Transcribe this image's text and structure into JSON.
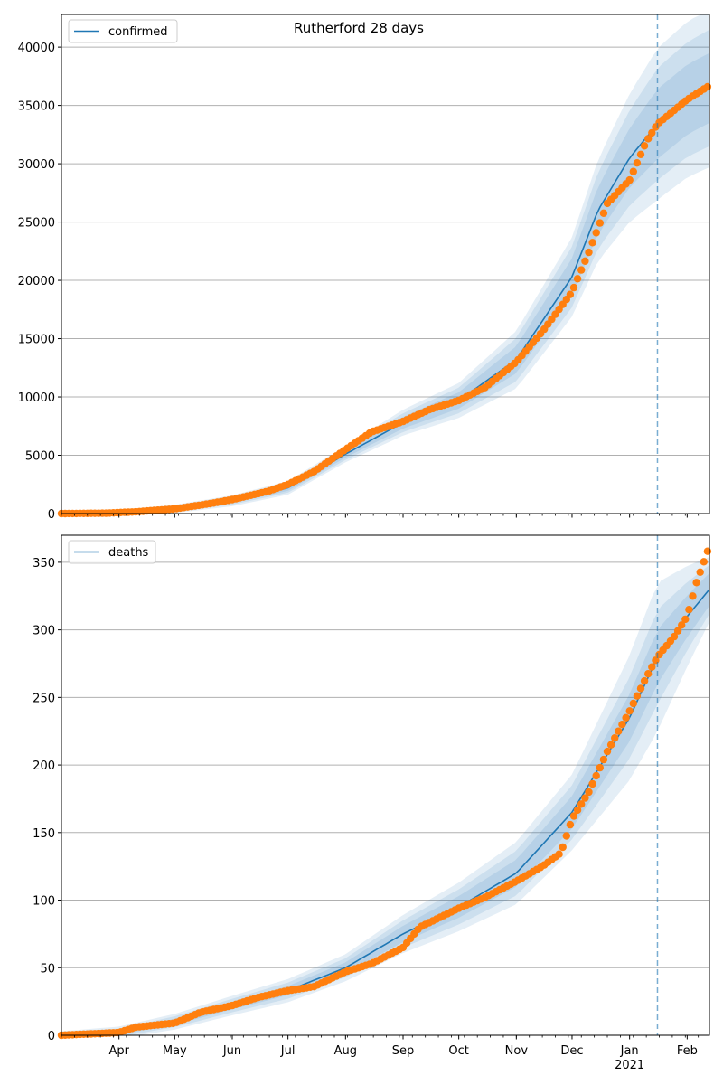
{
  "figure": {
    "title": "Rutherford 28 days"
  },
  "colors": {
    "model_line": "#1f77b4",
    "observed": "#ff7f0e",
    "band": "#1f77b4",
    "grid": "#b0b0b0",
    "forecast_line": "#1f77b4"
  },
  "x_axis": {
    "month_ticks": [
      {
        "label": "Apr",
        "date": "2020-04-01"
      },
      {
        "label": "May",
        "date": "2020-05-01"
      },
      {
        "label": "Jun",
        "date": "2020-06-01"
      },
      {
        "label": "Jul",
        "date": "2020-07-01"
      },
      {
        "label": "Aug",
        "date": "2020-08-01"
      },
      {
        "label": "Sep",
        "date": "2020-09-01"
      },
      {
        "label": "Oct",
        "date": "2020-10-01"
      },
      {
        "label": "Nov",
        "date": "2020-11-01"
      },
      {
        "label": "Dec",
        "date": "2020-12-01"
      },
      {
        "label": "Jan",
        "date": "2021-01-01"
      },
      {
        "label": "Feb",
        "date": "2021-02-01"
      }
    ],
    "year_label": "2021",
    "range": [
      "2020-03-01",
      "2021-02-13"
    ],
    "forecast_start": "2021-01-16"
  },
  "chart_data": [
    {
      "type": "line",
      "legend": [
        "confirmed"
      ],
      "ylim": [
        0,
        42800
      ],
      "yticks": [
        0,
        5000,
        10000,
        15000,
        20000,
        25000,
        30000,
        35000,
        40000
      ],
      "grid": "horizontal",
      "legend_position": "top-left",
      "model": {
        "name": "confirmed",
        "x": [
          "2020-03-01",
          "2020-04-01",
          "2020-05-01",
          "2020-06-01",
          "2020-07-01",
          "2020-08-01",
          "2020-09-01",
          "2020-10-01",
          "2020-11-01",
          "2020-12-01",
          "2020-12-15",
          "2021-01-01",
          "2021-01-16",
          "2021-02-01",
          "2021-02-13"
        ],
        "y": [
          0,
          60,
          400,
          1100,
          2200,
          5100,
          7800,
          9700,
          13200,
          20300,
          26000,
          30500,
          33400,
          35500,
          36500
        ]
      },
      "observed": {
        "x": [
          "2020-03-01",
          "2020-03-25",
          "2020-04-10",
          "2020-05-01",
          "2020-05-20",
          "2020-06-01",
          "2020-06-20",
          "2020-07-01",
          "2020-07-15",
          "2020-08-01",
          "2020-08-15",
          "2020-09-01",
          "2020-09-15",
          "2020-10-01",
          "2020-10-15",
          "2020-11-01",
          "2020-11-15",
          "2020-12-01",
          "2020-12-10",
          "2020-12-20",
          "2021-01-01",
          "2021-01-10",
          "2021-01-16",
          "2021-02-01",
          "2021-02-13"
        ],
        "y": [
          0,
          30,
          150,
          400,
          850,
          1200,
          1900,
          2500,
          3600,
          5500,
          7000,
          7900,
          8900,
          9700,
          10800,
          13000,
          15600,
          19000,
          22400,
          26600,
          28600,
          31900,
          33400,
          35500,
          36700
        ]
      },
      "band_widths": [
        {
          "x": [
            "2020-03-01",
            "2020-08-01",
            "2020-10-01",
            "2020-12-01",
            "2021-01-16",
            "2021-02-13"
          ],
          "half": [
            50,
            300,
            700,
            1600,
            3000,
            3000
          ]
        },
        {
          "x": [
            "2020-03-01",
            "2020-08-01",
            "2020-10-01",
            "2020-12-01",
            "2021-01-16",
            "2021-02-13"
          ],
          "half": [
            80,
            500,
            1100,
            2600,
            4800,
            5000
          ]
        },
        {
          "x": [
            "2020-03-01",
            "2020-08-01",
            "2020-10-01",
            "2020-12-01",
            "2021-01-16",
            "2021-02-13"
          ],
          "half": [
            120,
            700,
            1500,
            3400,
            6500,
            6800
          ]
        }
      ]
    },
    {
      "type": "line",
      "legend": [
        "deaths"
      ],
      "ylim": [
        0,
        370
      ],
      "yticks": [
        0,
        50,
        100,
        150,
        200,
        250,
        300,
        350
      ],
      "grid": "horizontal",
      "legend_position": "top-left",
      "model": {
        "name": "deaths",
        "x": [
          "2020-03-01",
          "2020-04-01",
          "2020-05-01",
          "2020-06-01",
          "2020-07-01",
          "2020-08-01",
          "2020-09-01",
          "2020-10-01",
          "2020-11-01",
          "2020-12-01",
          "2021-01-01",
          "2021-01-16",
          "2021-02-01",
          "2021-02-13"
        ],
        "y": [
          0,
          2,
          10,
          22,
          33,
          50,
          75,
          95,
          120,
          165,
          235,
          280,
          310,
          330
        ]
      },
      "observed": {
        "x": [
          "2020-03-01",
          "2020-04-01",
          "2020-04-10",
          "2020-05-01",
          "2020-05-15",
          "2020-06-01",
          "2020-06-15",
          "2020-07-01",
          "2020-07-15",
          "2020-08-01",
          "2020-08-15",
          "2020-09-01",
          "2020-09-10",
          "2020-10-01",
          "2020-10-15",
          "2020-11-01",
          "2020-11-15",
          "2020-11-25",
          "2020-12-01",
          "2020-12-10",
          "2020-12-20",
          "2021-01-01",
          "2021-01-10",
          "2021-01-16",
          "2021-01-25",
          "2021-02-01",
          "2021-02-06",
          "2021-02-13"
        ],
        "y": [
          0,
          2,
          6,
          9,
          17,
          22,
          28,
          33,
          36,
          47,
          53,
          65,
          80,
          94,
          102,
          114,
          125,
          135,
          160,
          180,
          210,
          240,
          265,
          280,
          295,
          310,
          335,
          362
        ]
      },
      "band_widths": [
        {
          "x": [
            "2020-03-01",
            "2020-08-01",
            "2020-10-01",
            "2020-12-01",
            "2021-01-16",
            "2021-02-13"
          ],
          "half": [
            1,
            4,
            8,
            12,
            20,
            12
          ]
        },
        {
          "x": [
            "2020-03-01",
            "2020-08-01",
            "2020-10-01",
            "2020-12-01",
            "2021-01-16",
            "2021-02-13"
          ],
          "half": [
            2,
            7,
            13,
            20,
            35,
            18
          ]
        },
        {
          "x": [
            "2020-03-01",
            "2020-08-01",
            "2020-10-01",
            "2020-12-01",
            "2021-01-16",
            "2021-02-13"
          ],
          "half": [
            3,
            10,
            18,
            28,
            55,
            24
          ]
        }
      ]
    }
  ]
}
